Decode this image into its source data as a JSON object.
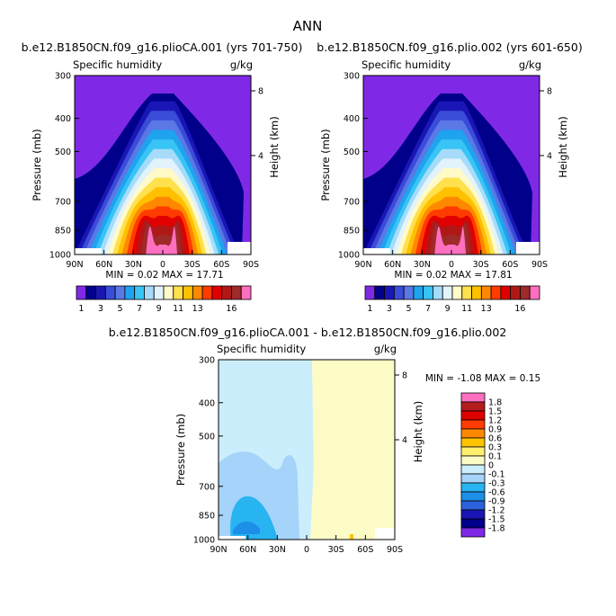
{
  "figure_title": "ANN",
  "colors": {
    "abs_levels": [
      "#7f29e6",
      "#00008a",
      "#1a16b5",
      "#3a4cd8",
      "#5a78e6",
      "#1ea3ef",
      "#38c4f5",
      "#a6dcfa",
      "#e2f3fb",
      "#fffac8",
      "#ffe04d",
      "#ffc000",
      "#ff8800",
      "#ff3b00",
      "#e00000",
      "#b01818",
      "#9e2a2a",
      "#ff6fc0"
    ],
    "diff_levels": [
      "#7f29e6",
      "#00008a",
      "#1a16b5",
      "#2a62dc",
      "#1e8fe8",
      "#28b4f0",
      "#a6d3fa",
      "#cbeefc",
      "#fdfbc6",
      "#fff070",
      "#ffc400",
      "#ff8800",
      "#ff3b00",
      "#e00000",
      "#b41d1d",
      "#ff6fc0"
    ]
  },
  "chart_data": [
    {
      "type": "heatmap",
      "title": "b.e12.B1850CN.f09_g16.plioCA.001 (yrs 701-750)",
      "left_label": "Specific humidity",
      "right_label": "g/kg",
      "ylabel": "Pressure (mb)",
      "ylabel_right": "Height (km)",
      "x_ticks": [
        "90N",
        "60N",
        "30N",
        "0",
        "30S",
        "60S",
        "90S"
      ],
      "y_ticks": [
        "300",
        "400",
        "500",
        "700",
        "850",
        "1000"
      ],
      "height_ticks": [
        "8",
        "4"
      ],
      "ylim": [
        1000,
        300
      ],
      "xlim": [
        90,
        -90
      ],
      "stats": "MIN =    0.02  MAX =   17.71",
      "min": 0.02,
      "max": 17.71,
      "colorbar_labels": [
        "1",
        "3",
        "5",
        "7",
        "9",
        "11",
        "13",
        "16"
      ]
    },
    {
      "type": "heatmap",
      "title": "b.e12.B1850CN.f09_g16.plio.002 (yrs 601-650)",
      "left_label": "Specific humidity",
      "right_label": "g/kg",
      "ylabel": "Pressure (mb)",
      "ylabel_right": "Height (km)",
      "x_ticks": [
        "90N",
        "60N",
        "30N",
        "0",
        "30S",
        "60S",
        "90S"
      ],
      "y_ticks": [
        "300",
        "400",
        "500",
        "700",
        "850",
        "1000"
      ],
      "height_ticks": [
        "8",
        "4"
      ],
      "ylim": [
        1000,
        300
      ],
      "xlim": [
        90,
        -90
      ],
      "stats": "MIN =    0.02  MAX =   17.81",
      "min": 0.02,
      "max": 17.81,
      "colorbar_labels": [
        "1",
        "3",
        "5",
        "7",
        "9",
        "11",
        "13",
        "16"
      ]
    },
    {
      "type": "heatmap",
      "title": "b.e12.B1850CN.f09_g16.plioCA.001 - b.e12.B1850CN.f09_g16.plio.002",
      "left_label": "Specific humidity",
      "right_label": "g/kg",
      "ylabel": "Pressure (mb)",
      "ylabel_right": "Height (km)",
      "x_ticks": [
        "90N",
        "60N",
        "30N",
        "0",
        "30S",
        "60S",
        "90S"
      ],
      "y_ticks": [
        "300",
        "400",
        "500",
        "700",
        "850",
        "1000"
      ],
      "height_ticks": [
        "8",
        "4"
      ],
      "ylim": [
        1000,
        300
      ],
      "xlim": [
        90,
        -90
      ],
      "stats": "MIN =  -1.08  MAX =    0.15",
      "min": -1.08,
      "max": 0.15,
      "colorbar_labels": [
        "1.8",
        "1.5",
        "1.2",
        "0.9",
        "0.6",
        "0.3",
        "0.1",
        "0",
        "-0.1",
        "-0.3",
        "-0.6",
        "-0.9",
        "-1.2",
        "-1.5",
        "-1.8"
      ]
    }
  ]
}
